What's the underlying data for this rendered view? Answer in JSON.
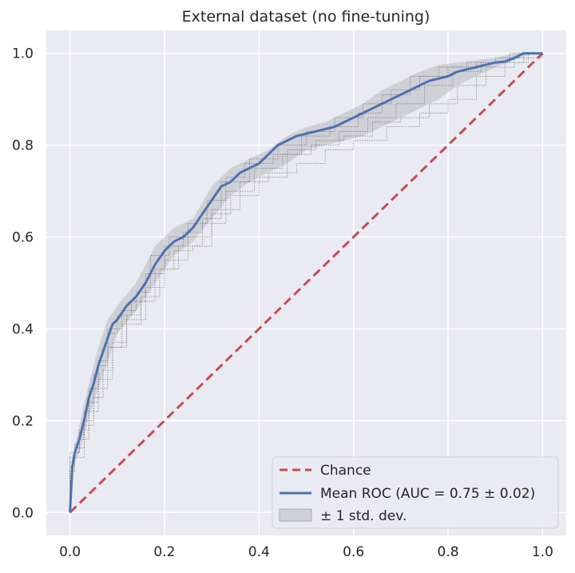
{
  "chart_data": {
    "type": "line",
    "title": "External dataset (no fine-tuning)",
    "xlabel": "",
    "ylabel": "",
    "xlim": [
      -0.05,
      1.05
    ],
    "ylim": [
      -0.05,
      1.05
    ],
    "xticks": [
      "0.0",
      "0.2",
      "0.4",
      "0.6",
      "0.8",
      "1.0"
    ],
    "yticks": [
      "0.0",
      "0.2",
      "0.4",
      "0.6",
      "0.8",
      "1.0"
    ],
    "grid": true,
    "legend_position": "lower-right",
    "colors": {
      "background": "#eaeaf2",
      "grid": "#ffffff",
      "chance": "#c44e52",
      "mean": "#4c72b0",
      "band": "#b8b8bf",
      "folds": "#555555"
    },
    "series": [
      {
        "name": "Chance",
        "style": "dashed",
        "x": [
          0,
          1
        ],
        "y": [
          0,
          1
        ]
      },
      {
        "name": "Mean ROC (AUC = 0.75 ± 0.02)",
        "style": "solid",
        "x": [
          0,
          0.005,
          0.01,
          0.02,
          0.03,
          0.04,
          0.05,
          0.06,
          0.07,
          0.08,
          0.09,
          0.1,
          0.12,
          0.14,
          0.16,
          0.18,
          0.2,
          0.22,
          0.24,
          0.26,
          0.28,
          0.3,
          0.32,
          0.34,
          0.36,
          0.38,
          0.4,
          0.42,
          0.44,
          0.46,
          0.48,
          0.5,
          0.52,
          0.54,
          0.56,
          0.58,
          0.6,
          0.62,
          0.64,
          0.66,
          0.68,
          0.7,
          0.72,
          0.74,
          0.76,
          0.78,
          0.8,
          0.82,
          0.84,
          0.86,
          0.88,
          0.9,
          0.92,
          0.94,
          0.96,
          0.98,
          1.0
        ],
        "y": [
          0,
          0.1,
          0.13,
          0.16,
          0.2,
          0.25,
          0.28,
          0.32,
          0.35,
          0.38,
          0.41,
          0.42,
          0.45,
          0.47,
          0.5,
          0.54,
          0.57,
          0.59,
          0.6,
          0.62,
          0.65,
          0.68,
          0.71,
          0.72,
          0.74,
          0.75,
          0.76,
          0.78,
          0.8,
          0.81,
          0.82,
          0.825,
          0.83,
          0.835,
          0.84,
          0.85,
          0.86,
          0.87,
          0.88,
          0.89,
          0.9,
          0.91,
          0.92,
          0.93,
          0.94,
          0.945,
          0.95,
          0.96,
          0.965,
          0.97,
          0.975,
          0.98,
          0.982,
          0.99,
          1.0,
          1.0,
          1.0
        ]
      },
      {
        "name": "± 1 std. dev.",
        "style": "band",
        "x": [
          0,
          0.01,
          0.02,
          0.04,
          0.06,
          0.08,
          0.1,
          0.14,
          0.18,
          0.22,
          0.26,
          0.3,
          0.34,
          0.38,
          0.42,
          0.46,
          0.5,
          0.54,
          0.58,
          0.62,
          0.66,
          0.7,
          0.74,
          0.78,
          0.82,
          0.86,
          0.9,
          0.94,
          0.98,
          1.0
        ],
        "lower": [
          0,
          0.11,
          0.13,
          0.21,
          0.27,
          0.33,
          0.39,
          0.44,
          0.5,
          0.56,
          0.59,
          0.64,
          0.69,
          0.72,
          0.74,
          0.76,
          0.79,
          0.8,
          0.81,
          0.82,
          0.84,
          0.86,
          0.88,
          0.9,
          0.93,
          0.95,
          0.97,
          0.985,
          1.0,
          1.0
        ],
        "upper": [
          0,
          0.14,
          0.19,
          0.28,
          0.36,
          0.42,
          0.45,
          0.5,
          0.58,
          0.62,
          0.64,
          0.71,
          0.75,
          0.77,
          0.79,
          0.82,
          0.84,
          0.85,
          0.87,
          0.89,
          0.92,
          0.94,
          0.96,
          0.975,
          0.98,
          0.985,
          0.99,
          1.0,
          1.0,
          1.0
        ]
      }
    ],
    "folds": [
      {
        "x": [
          0,
          0,
          0.01,
          0.02,
          0.03,
          0.04,
          0.05,
          0.06,
          0.08,
          0.1,
          0.13,
          0.16,
          0.2,
          0.24,
          0.28,
          0.32,
          0.38,
          0.44,
          0.5,
          0.56,
          0.62,
          0.68,
          0.74,
          0.8,
          0.86,
          0.92,
          0.96,
          1.0
        ],
        "y": [
          0,
          0.12,
          0.15,
          0.17,
          0.22,
          0.27,
          0.3,
          0.33,
          0.39,
          0.43,
          0.46,
          0.52,
          0.58,
          0.61,
          0.64,
          0.72,
          0.77,
          0.8,
          0.83,
          0.86,
          0.89,
          0.92,
          0.95,
          0.97,
          0.98,
          0.98,
          1.0,
          1.0
        ]
      },
      {
        "x": [
          0,
          0,
          0.01,
          0.03,
          0.05,
          0.07,
          0.09,
          0.12,
          0.15,
          0.18,
          0.22,
          0.26,
          0.3,
          0.34,
          0.4,
          0.46,
          0.52,
          0.58,
          0.64,
          0.7,
          0.76,
          0.82,
          0.88,
          0.94,
          1.0
        ],
        "y": [
          0,
          0.09,
          0.12,
          0.19,
          0.25,
          0.31,
          0.37,
          0.43,
          0.46,
          0.53,
          0.57,
          0.58,
          0.65,
          0.69,
          0.73,
          0.79,
          0.81,
          0.82,
          0.85,
          0.86,
          0.89,
          0.93,
          0.97,
          0.99,
          1.0
        ]
      },
      {
        "x": [
          0,
          0,
          0.02,
          0.04,
          0.06,
          0.08,
          0.11,
          0.14,
          0.17,
          0.21,
          0.25,
          0.29,
          0.33,
          0.37,
          0.43,
          0.49,
          0.55,
          0.61,
          0.66,
          0.72,
          0.78,
          0.84,
          0.9,
          0.95,
          1.0
        ],
        "y": [
          0,
          0.13,
          0.18,
          0.24,
          0.32,
          0.4,
          0.44,
          0.48,
          0.56,
          0.6,
          0.63,
          0.68,
          0.73,
          0.76,
          0.78,
          0.82,
          0.84,
          0.87,
          0.91,
          0.95,
          0.97,
          0.98,
          0.99,
          1.0,
          1.0
        ]
      },
      {
        "x": [
          0,
          0,
          0.01,
          0.02,
          0.04,
          0.06,
          0.09,
          0.12,
          0.16,
          0.2,
          0.25,
          0.3,
          0.36,
          0.42,
          0.48,
          0.54,
          0.6,
          0.67,
          0.74,
          0.8,
          0.86,
          0.92,
          0.97,
          1.0
        ],
        "y": [
          0,
          0.1,
          0.13,
          0.16,
          0.22,
          0.29,
          0.36,
          0.42,
          0.49,
          0.55,
          0.6,
          0.66,
          0.72,
          0.74,
          0.76,
          0.79,
          0.81,
          0.84,
          0.87,
          0.9,
          0.95,
          0.98,
          1.0,
          1.0
        ]
      },
      {
        "x": [
          0,
          0,
          0.01,
          0.03,
          0.05,
          0.08,
          0.11,
          0.15,
          0.19,
          0.23,
          0.28,
          0.33,
          0.39,
          0.45,
          0.51,
          0.57,
          0.63,
          0.69,
          0.75,
          0.81,
          0.87,
          0.93,
          1.0
        ],
        "y": [
          0,
          0.11,
          0.14,
          0.2,
          0.27,
          0.36,
          0.41,
          0.47,
          0.53,
          0.58,
          0.63,
          0.7,
          0.75,
          0.78,
          0.8,
          0.83,
          0.86,
          0.89,
          0.93,
          0.96,
          0.98,
          1.0,
          1.0
        ]
      }
    ]
  }
}
